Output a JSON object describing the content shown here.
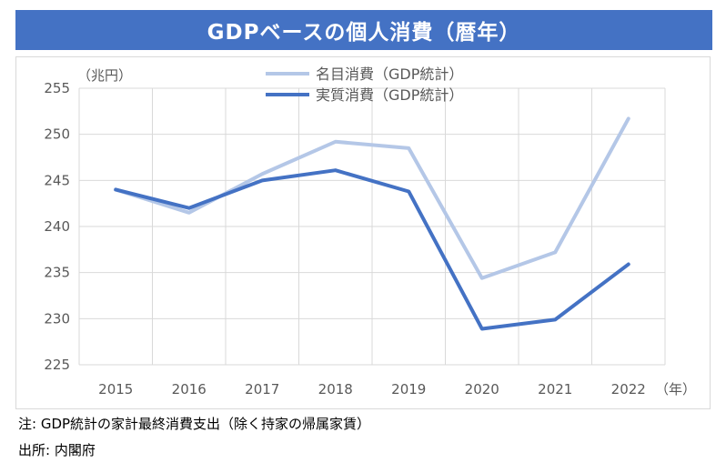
{
  "title": "GDPベースの個人消費（暦年）",
  "footnotes": {
    "note": "注: GDP統計の家計最終消費支出（除く持家の帰属家賃）",
    "source": "出所: 内閣府"
  },
  "colors": {
    "title_bg": "#4472c4",
    "nominal": "#b4c7e7",
    "real": "#4472c4",
    "grid": "#d9d9d9",
    "text": "#595959"
  },
  "chart_data": {
    "type": "line",
    "title": "GDPベースの個人消費（暦年）",
    "ylabel": "（兆円）",
    "xlabel": "（年）",
    "ylim": [
      225,
      255
    ],
    "yticks": [
      225,
      230,
      235,
      240,
      245,
      250,
      255
    ],
    "grid": true,
    "legend": "top-center",
    "categories": [
      "2015",
      "2016",
      "2017",
      "2018",
      "2019",
      "2020",
      "2021",
      "2022"
    ],
    "series": [
      {
        "name": "名目消費（GDP統計）",
        "values": [
          244.0,
          241.5,
          245.7,
          249.2,
          248.5,
          234.4,
          237.2,
          251.7
        ]
      },
      {
        "name": "実質消費（GDP統計）",
        "values": [
          244.0,
          242.0,
          245.0,
          246.1,
          243.8,
          228.9,
          229.9,
          235.9
        ]
      }
    ]
  }
}
